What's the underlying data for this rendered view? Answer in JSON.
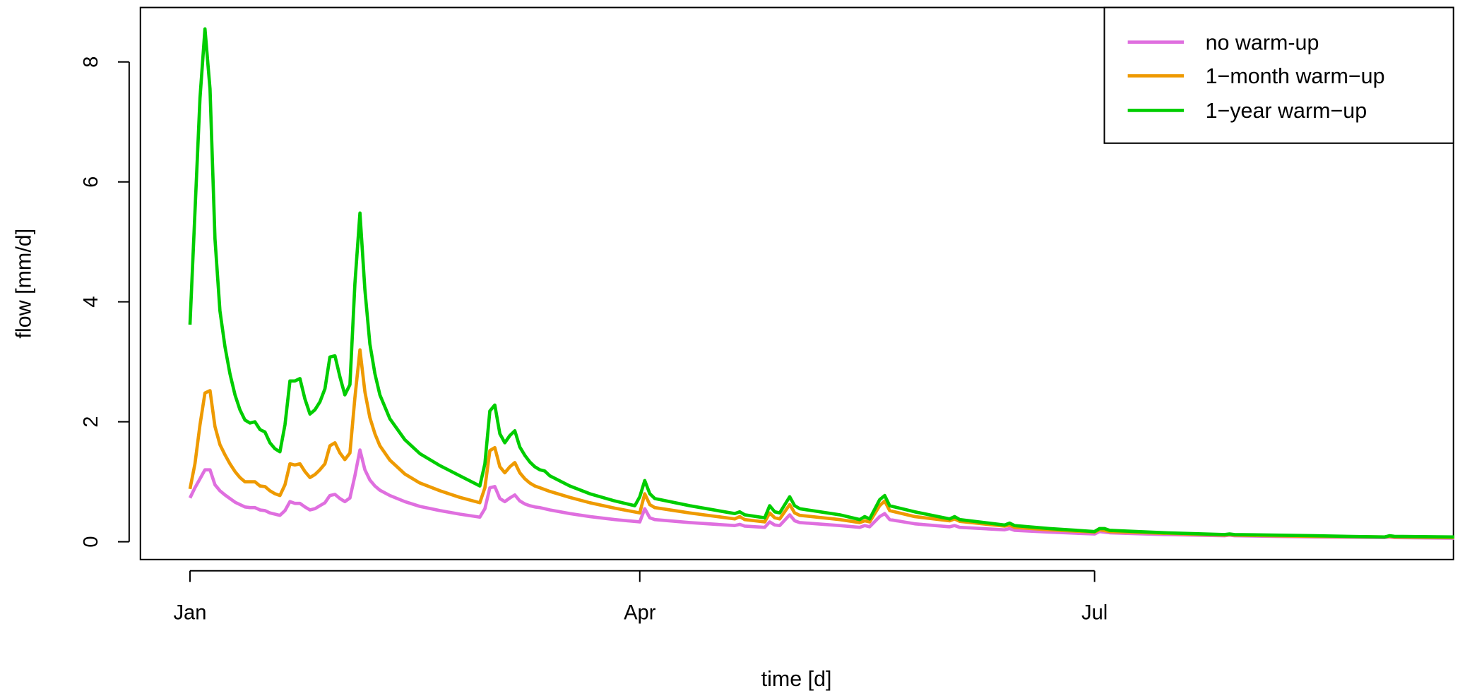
{
  "chart_data": {
    "type": "line",
    "title": "",
    "xlabel": "time [d]",
    "ylabel": "flow [mm/d]",
    "xlim_days": [
      0,
      253
    ],
    "ylim": [
      0,
      8.6
    ],
    "x_ticks": [
      {
        "label": "Jan",
        "day": 0
      },
      {
        "label": "Apr",
        "day": 90
      },
      {
        "label": "Jul",
        "day": 181
      }
    ],
    "y_ticks": [
      0,
      2,
      4,
      6,
      8
    ],
    "legend_position": "top-right",
    "grid": false,
    "series": [
      {
        "name": "no warm-up",
        "color": "#DF6FDF",
        "points": [
          [
            0,
            0.73
          ],
          [
            1,
            0.9
          ],
          [
            2,
            1.05
          ],
          [
            3,
            1.2
          ],
          [
            4,
            1.2
          ],
          [
            5,
            0.95
          ],
          [
            6,
            0.85
          ],
          [
            7,
            0.78
          ],
          [
            8,
            0.72
          ],
          [
            9,
            0.66
          ],
          [
            10,
            0.62
          ],
          [
            11,
            0.58
          ],
          [
            12,
            0.57
          ],
          [
            13,
            0.57
          ],
          [
            14,
            0.53
          ],
          [
            15,
            0.52
          ],
          [
            16,
            0.48
          ],
          [
            17,
            0.46
          ],
          [
            18,
            0.44
          ],
          [
            19,
            0.52
          ],
          [
            20,
            0.67
          ],
          [
            21,
            0.64
          ],
          [
            22,
            0.64
          ],
          [
            23,
            0.58
          ],
          [
            24,
            0.53
          ],
          [
            25,
            0.55
          ],
          [
            26,
            0.6
          ],
          [
            27,
            0.65
          ],
          [
            28,
            0.77
          ],
          [
            29,
            0.79
          ],
          [
            30,
            0.72
          ],
          [
            31,
            0.67
          ],
          [
            32,
            0.73
          ],
          [
            33,
            1.1
          ],
          [
            34,
            1.53
          ],
          [
            35,
            1.2
          ],
          [
            36,
            1.03
          ],
          [
            37,
            0.93
          ],
          [
            38,
            0.86
          ],
          [
            40,
            0.77
          ],
          [
            43,
            0.67
          ],
          [
            46,
            0.59
          ],
          [
            50,
            0.52
          ],
          [
            54,
            0.46
          ],
          [
            58,
            0.41
          ],
          [
            59,
            0.55
          ],
          [
            60,
            0.9
          ],
          [
            61,
            0.92
          ],
          [
            62,
            0.72
          ],
          [
            63,
            0.67
          ],
          [
            64,
            0.73
          ],
          [
            65,
            0.78
          ],
          [
            66,
            0.68
          ],
          [
            67,
            0.63
          ],
          [
            68,
            0.6
          ],
          [
            69,
            0.58
          ],
          [
            70,
            0.57
          ],
          [
            72,
            0.53
          ],
          [
            76,
            0.47
          ],
          [
            80,
            0.42
          ],
          [
            85,
            0.37
          ],
          [
            90,
            0.33
          ],
          [
            91,
            0.55
          ],
          [
            92,
            0.4
          ],
          [
            93,
            0.37
          ],
          [
            100,
            0.32
          ],
          [
            109,
            0.27
          ],
          [
            110,
            0.29
          ],
          [
            111,
            0.26
          ],
          [
            115,
            0.24
          ],
          [
            116,
            0.33
          ],
          [
            117,
            0.28
          ],
          [
            118,
            0.27
          ],
          [
            120,
            0.45
          ],
          [
            121,
            0.35
          ],
          [
            122,
            0.32
          ],
          [
            130,
            0.27
          ],
          [
            134,
            0.24
          ],
          [
            135,
            0.27
          ],
          [
            136,
            0.25
          ],
          [
            138,
            0.42
          ],
          [
            139,
            0.47
          ],
          [
            140,
            0.37
          ],
          [
            145,
            0.3
          ],
          [
            152,
            0.25
          ],
          [
            153,
            0.27
          ],
          [
            154,
            0.24
          ],
          [
            163,
            0.2
          ],
          [
            164,
            0.22
          ],
          [
            165,
            0.19
          ],
          [
            172,
            0.16
          ],
          [
            181,
            0.13
          ],
          [
            182,
            0.17
          ],
          [
            184,
            0.15
          ],
          [
            195,
            0.12
          ],
          [
            207,
            0.1
          ],
          [
            208,
            0.11
          ],
          [
            209,
            0.1
          ],
          [
            225,
            0.08
          ],
          [
            239,
            0.07
          ],
          [
            240,
            0.08
          ],
          [
            241,
            0.07
          ],
          [
            253,
            0.06
          ]
        ]
      },
      {
        "name": "1−month warm−up",
        "color": "#EE9A00",
        "points": [
          [
            0,
            0.88
          ],
          [
            1,
            1.3
          ],
          [
            2,
            1.95
          ],
          [
            3,
            2.48
          ],
          [
            4,
            2.52
          ],
          [
            5,
            1.92
          ],
          [
            6,
            1.62
          ],
          [
            7,
            1.45
          ],
          [
            8,
            1.3
          ],
          [
            9,
            1.17
          ],
          [
            10,
            1.07
          ],
          [
            11,
            1.0
          ],
          [
            12,
            1.0
          ],
          [
            13,
            1.0
          ],
          [
            14,
            0.93
          ],
          [
            15,
            0.92
          ],
          [
            16,
            0.85
          ],
          [
            17,
            0.8
          ],
          [
            18,
            0.77
          ],
          [
            19,
            0.95
          ],
          [
            20,
            1.3
          ],
          [
            21,
            1.28
          ],
          [
            22,
            1.3
          ],
          [
            23,
            1.17
          ],
          [
            24,
            1.07
          ],
          [
            25,
            1.12
          ],
          [
            26,
            1.2
          ],
          [
            27,
            1.3
          ],
          [
            28,
            1.6
          ],
          [
            29,
            1.65
          ],
          [
            30,
            1.48
          ],
          [
            31,
            1.37
          ],
          [
            32,
            1.48
          ],
          [
            33,
            2.4
          ],
          [
            34,
            3.2
          ],
          [
            35,
            2.5
          ],
          [
            36,
            2.07
          ],
          [
            37,
            1.8
          ],
          [
            38,
            1.6
          ],
          [
            40,
            1.36
          ],
          [
            43,
            1.13
          ],
          [
            46,
            0.98
          ],
          [
            50,
            0.85
          ],
          [
            54,
            0.74
          ],
          [
            58,
            0.65
          ],
          [
            59,
            0.9
          ],
          [
            60,
            1.52
          ],
          [
            61,
            1.57
          ],
          [
            62,
            1.25
          ],
          [
            63,
            1.15
          ],
          [
            64,
            1.25
          ],
          [
            65,
            1.32
          ],
          [
            66,
            1.15
          ],
          [
            67,
            1.05
          ],
          [
            68,
            0.98
          ],
          [
            69,
            0.93
          ],
          [
            70,
            0.9
          ],
          [
            72,
            0.84
          ],
          [
            76,
            0.74
          ],
          [
            80,
            0.65
          ],
          [
            85,
            0.56
          ],
          [
            90,
            0.48
          ],
          [
            91,
            0.8
          ],
          [
            92,
            0.62
          ],
          [
            93,
            0.57
          ],
          [
            100,
            0.48
          ],
          [
            109,
            0.38
          ],
          [
            110,
            0.42
          ],
          [
            111,
            0.37
          ],
          [
            115,
            0.33
          ],
          [
            116,
            0.48
          ],
          [
            117,
            0.4
          ],
          [
            118,
            0.38
          ],
          [
            120,
            0.62
          ],
          [
            121,
            0.48
          ],
          [
            122,
            0.44
          ],
          [
            130,
            0.37
          ],
          [
            134,
            0.32
          ],
          [
            135,
            0.35
          ],
          [
            136,
            0.33
          ],
          [
            138,
            0.6
          ],
          [
            139,
            0.68
          ],
          [
            140,
            0.52
          ],
          [
            145,
            0.42
          ],
          [
            152,
            0.35
          ],
          [
            153,
            0.38
          ],
          [
            154,
            0.34
          ],
          [
            163,
            0.26
          ],
          [
            164,
            0.28
          ],
          [
            165,
            0.24
          ],
          [
            172,
            0.2
          ],
          [
            181,
            0.16
          ],
          [
            182,
            0.2
          ],
          [
            184,
            0.17
          ],
          [
            195,
            0.14
          ],
          [
            207,
            0.11
          ],
          [
            208,
            0.12
          ],
          [
            209,
            0.11
          ],
          [
            225,
            0.09
          ],
          [
            239,
            0.08
          ],
          [
            240,
            0.09
          ],
          [
            241,
            0.08
          ],
          [
            253,
            0.07
          ]
        ]
      },
      {
        "name": "1−year warm−up",
        "color": "#00CD00",
        "points": [
          [
            0,
            3.62
          ],
          [
            2,
            7.4
          ],
          [
            3,
            8.55
          ],
          [
            4,
            7.55
          ],
          [
            5,
            5.05
          ],
          [
            6,
            3.85
          ],
          [
            7,
            3.25
          ],
          [
            8,
            2.8
          ],
          [
            9,
            2.45
          ],
          [
            10,
            2.2
          ],
          [
            11,
            2.03
          ],
          [
            12,
            1.98
          ],
          [
            13,
            2.0
          ],
          [
            14,
            1.87
          ],
          [
            15,
            1.83
          ],
          [
            16,
            1.65
          ],
          [
            17,
            1.55
          ],
          [
            18,
            1.5
          ],
          [
            19,
            1.95
          ],
          [
            20,
            2.68
          ],
          [
            21,
            2.68
          ],
          [
            22,
            2.72
          ],
          [
            23,
            2.38
          ],
          [
            24,
            2.13
          ],
          [
            25,
            2.2
          ],
          [
            26,
            2.33
          ],
          [
            27,
            2.55
          ],
          [
            28,
            3.08
          ],
          [
            29,
            3.1
          ],
          [
            30,
            2.75
          ],
          [
            31,
            2.45
          ],
          [
            32,
            2.62
          ],
          [
            33,
            4.3
          ],
          [
            34,
            5.48
          ],
          [
            35,
            4.2
          ],
          [
            36,
            3.3
          ],
          [
            37,
            2.8
          ],
          [
            38,
            2.45
          ],
          [
            40,
            2.05
          ],
          [
            43,
            1.7
          ],
          [
            46,
            1.47
          ],
          [
            50,
            1.27
          ],
          [
            54,
            1.1
          ],
          [
            58,
            0.93
          ],
          [
            59,
            1.3
          ],
          [
            60,
            2.18
          ],
          [
            61,
            2.28
          ],
          [
            62,
            1.8
          ],
          [
            63,
            1.65
          ],
          [
            64,
            1.77
          ],
          [
            65,
            1.85
          ],
          [
            66,
            1.58
          ],
          [
            67,
            1.44
          ],
          [
            68,
            1.33
          ],
          [
            69,
            1.25
          ],
          [
            70,
            1.2
          ],
          [
            71,
            1.18
          ],
          [
            72,
            1.1
          ],
          [
            76,
            0.93
          ],
          [
            80,
            0.8
          ],
          [
            85,
            0.68
          ],
          [
            89,
            0.6
          ],
          [
            90,
            0.75
          ],
          [
            91,
            1.02
          ],
          [
            92,
            0.8
          ],
          [
            93,
            0.72
          ],
          [
            100,
            0.6
          ],
          [
            109,
            0.47
          ],
          [
            110,
            0.5
          ],
          [
            111,
            0.45
          ],
          [
            115,
            0.4
          ],
          [
            116,
            0.6
          ],
          [
            117,
            0.5
          ],
          [
            118,
            0.48
          ],
          [
            120,
            0.75
          ],
          [
            121,
            0.6
          ],
          [
            122,
            0.55
          ],
          [
            130,
            0.45
          ],
          [
            134,
            0.37
          ],
          [
            135,
            0.42
          ],
          [
            136,
            0.38
          ],
          [
            138,
            0.7
          ],
          [
            139,
            0.77
          ],
          [
            140,
            0.6
          ],
          [
            145,
            0.5
          ],
          [
            152,
            0.38
          ],
          [
            153,
            0.42
          ],
          [
            154,
            0.37
          ],
          [
            163,
            0.28
          ],
          [
            164,
            0.31
          ],
          [
            165,
            0.27
          ],
          [
            172,
            0.22
          ],
          [
            181,
            0.17
          ],
          [
            182,
            0.22
          ],
          [
            183,
            0.22
          ],
          [
            184,
            0.19
          ],
          [
            195,
            0.15
          ],
          [
            207,
            0.12
          ],
          [
            208,
            0.13
          ],
          [
            209,
            0.12
          ],
          [
            225,
            0.1
          ],
          [
            239,
            0.08
          ],
          [
            240,
            0.1
          ],
          [
            241,
            0.09
          ],
          [
            253,
            0.08
          ]
        ]
      }
    ]
  }
}
